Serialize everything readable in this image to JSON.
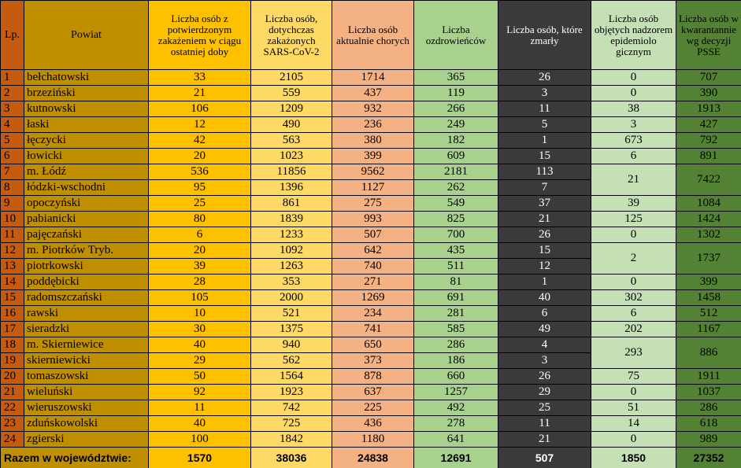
{
  "headers": {
    "lp": "Lp.",
    "powiat": "Powiat",
    "new": "Liczba osób z potwierdzonym zakażeniem w ciągu ostatniej doby",
    "total": "Liczba osób, dotychczas zakażonych SARS-CoV-2",
    "active": "Liczba osób aktualnie chorych",
    "recovered": "Liczba ozdrowieńców",
    "deaths": "Liczba osób, które zmarły",
    "supervision": "Liczba osób objętych nadzorem epidemiolo gicznym",
    "quarantine": "Liczba osób w kwarantannie wg decyzji PSSE"
  },
  "rows": [
    {
      "lp": "1",
      "name": "bełchatowski",
      "new": "33",
      "total": "2105",
      "active": "1714",
      "recovered": "365",
      "deaths": "26",
      "supervision": "0",
      "quarantine": "707"
    },
    {
      "lp": "2",
      "name": "brzeziński",
      "new": "21",
      "total": "559",
      "active": "437",
      "recovered": "119",
      "deaths": "3",
      "supervision": "0",
      "quarantine": "390"
    },
    {
      "lp": "3",
      "name": "kutnowski",
      "new": "106",
      "total": "1209",
      "active": "932",
      "recovered": "266",
      "deaths": "11",
      "supervision": "38",
      "quarantine": "1913"
    },
    {
      "lp": "4",
      "name": "łaski",
      "new": "12",
      "total": "490",
      "active": "236",
      "recovered": "249",
      "deaths": "5",
      "supervision": "3",
      "quarantine": "427"
    },
    {
      "lp": "5",
      "name": "łęczycki",
      "new": "42",
      "total": "563",
      "active": "380",
      "recovered": "182",
      "deaths": "1",
      "supervision": "673",
      "quarantine": "792"
    },
    {
      "lp": "6",
      "name": "łowicki",
      "new": "20",
      "total": "1023",
      "active": "399",
      "recovered": "609",
      "deaths": "15",
      "supervision": "6",
      "quarantine": "891"
    },
    {
      "lp": "7",
      "name": "m. Łódź",
      "new": "536",
      "total": "11856",
      "active": "9562",
      "recovered": "2181",
      "deaths": "113",
      "supervision": "21",
      "quarantine": "7422"
    },
    {
      "lp": "8",
      "name": "łódzki-wschodni",
      "new": "95",
      "total": "1396",
      "active": "1127",
      "recovered": "262",
      "deaths": "7"
    },
    {
      "lp": "9",
      "name": "opoczyński",
      "new": "25",
      "total": "861",
      "active": "275",
      "recovered": "549",
      "deaths": "37",
      "supervision": "39",
      "quarantine": "1084"
    },
    {
      "lp": "10",
      "name": "pabianicki",
      "new": "80",
      "total": "1839",
      "active": "993",
      "recovered": "825",
      "deaths": "21",
      "supervision": "125",
      "quarantine": "1424"
    },
    {
      "lp": "11",
      "name": "pajęczański",
      "new": "6",
      "total": "1233",
      "active": "507",
      "recovered": "700",
      "deaths": "26",
      "supervision": "0",
      "quarantine": "1302"
    },
    {
      "lp": "12",
      "name": "m. Piotrków Tryb.",
      "new": "20",
      "total": "1092",
      "active": "642",
      "recovered": "435",
      "deaths": "15",
      "supervision": "2",
      "quarantine": "1737"
    },
    {
      "lp": "13",
      "name": "piotrkowski",
      "new": "39",
      "total": "1263",
      "active": "740",
      "recovered": "511",
      "deaths": "12"
    },
    {
      "lp": "14",
      "name": "poddębicki",
      "new": "28",
      "total": "353",
      "active": "271",
      "recovered": "81",
      "deaths": "1",
      "supervision": "0",
      "quarantine": "399"
    },
    {
      "lp": "15",
      "name": "radomszczański",
      "new": "105",
      "total": "2000",
      "active": "1269",
      "recovered": "691",
      "deaths": "40",
      "supervision": "302",
      "quarantine": "1458"
    },
    {
      "lp": "16",
      "name": "rawski",
      "new": "10",
      "total": "521",
      "active": "234",
      "recovered": "281",
      "deaths": "6",
      "supervision": "6",
      "quarantine": "512"
    },
    {
      "lp": "17",
      "name": "sieradzki",
      "new": "30",
      "total": "1375",
      "active": "741",
      "recovered": "585",
      "deaths": "49",
      "supervision": "202",
      "quarantine": "1167"
    },
    {
      "lp": "18",
      "name": "m. Skierniewice",
      "new": "40",
      "total": "940",
      "active": "650",
      "recovered": "286",
      "deaths": "4",
      "supervision": "293",
      "quarantine": "886"
    },
    {
      "lp": "19",
      "name": "skierniewicki",
      "new": "29",
      "total": "562",
      "active": "373",
      "recovered": "186",
      "deaths": "3"
    },
    {
      "lp": "20",
      "name": "tomaszowski",
      "new": "50",
      "total": "1564",
      "active": "878",
      "recovered": "660",
      "deaths": "26",
      "supervision": "75",
      "quarantine": "1911"
    },
    {
      "lp": "21",
      "name": "wieluński",
      "new": "92",
      "total": "1923",
      "active": "637",
      "recovered": "1257",
      "deaths": "29",
      "supervision": "0",
      "quarantine": "1037"
    },
    {
      "lp": "22",
      "name": "wieruszowski",
      "new": "11",
      "total": "742",
      "active": "225",
      "recovered": "492",
      "deaths": "25",
      "supervision": "51",
      "quarantine": "286"
    },
    {
      "lp": "23",
      "name": "zduńskowolski",
      "new": "40",
      "total": "725",
      "active": "436",
      "recovered": "278",
      "deaths": "11",
      "supervision": "14",
      "quarantine": "618"
    },
    {
      "lp": "24",
      "name": "zgierski",
      "new": "100",
      "total": "1842",
      "active": "1180",
      "recovered": "641",
      "deaths": "21",
      "supervision": "0",
      "quarantine": "989"
    }
  ],
  "totals": {
    "label": "Razem w województwie:",
    "new": "1570",
    "total": "38036",
    "active": "24838",
    "recovered": "12691",
    "deaths": "507",
    "supervision": "1850",
    "quarantine": "27352"
  },
  "merged_rows": {
    "7": 2,
    "12": 2,
    "18": 2
  }
}
